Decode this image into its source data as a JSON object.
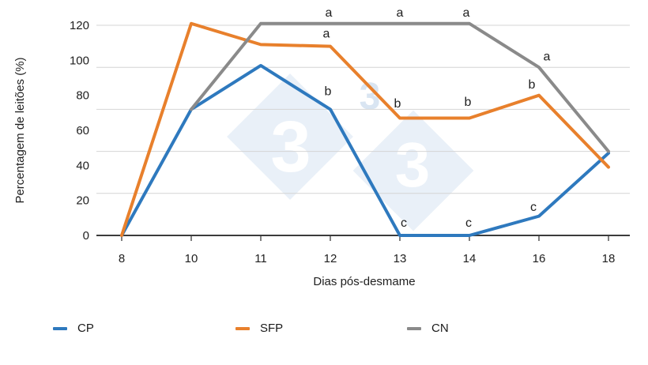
{
  "watermark": {
    "glyph": "3",
    "fill": "#E9F0F8",
    "text_color": "#D9E5F2"
  },
  "chart_data": {
    "type": "line",
    "xlabel": "Dias pós-desmame",
    "ylabel": "Percentagem de leitões (%)",
    "categories": [
      "8",
      "10",
      "11",
      "12",
      "13",
      "14",
      "16",
      "18"
    ],
    "y_ticks": [
      0,
      20,
      40,
      60,
      80,
      100,
      120
    ],
    "gridline_values": [
      24,
      48,
      72,
      96,
      120
    ],
    "ylim": [
      0,
      120
    ],
    "grid": "horizontal-only",
    "legend_position": "bottom",
    "series": [
      {
        "name": "CP",
        "color": "#2E79BE",
        "values": [
          0,
          72,
          97,
          72,
          0,
          0,
          11,
          47
        ]
      },
      {
        "name": "SFP",
        "color": "#E8802C",
        "values": [
          0,
          121,
          109,
          108,
          67,
          67,
          80,
          39
        ]
      },
      {
        "name": "CN",
        "color": "#8A8A8A",
        "values": [
          null,
          72,
          121,
          121,
          121,
          121,
          96,
          48
        ]
      }
    ],
    "annotations": [
      {
        "text": "a",
        "xi": 3,
        "dx": -2,
        "v": 125
      },
      {
        "text": "a",
        "xi": 4,
        "dx": 0,
        "v": 125
      },
      {
        "text": "a",
        "xi": 5,
        "dx": -4,
        "v": 125
      },
      {
        "text": "a",
        "xi": 3,
        "dx": -5,
        "v": 113
      },
      {
        "text": "a",
        "xi": 6,
        "dx": 10,
        "v": 100
      },
      {
        "text": "b",
        "xi": 3,
        "dx": -3,
        "v": 80
      },
      {
        "text": "b",
        "xi": 4,
        "dx": -3,
        "v": 73
      },
      {
        "text": "b",
        "xi": 5,
        "dx": -2,
        "v": 74
      },
      {
        "text": "b",
        "xi": 6,
        "dx": -9,
        "v": 84
      },
      {
        "text": "c",
        "xi": 4,
        "dx": 5,
        "v": 5
      },
      {
        "text": "c",
        "xi": 5,
        "dx": -1,
        "v": 5
      },
      {
        "text": "c",
        "xi": 6,
        "dx": -7,
        "v": 14
      }
    ],
    "style": {
      "axis_color": "#3B3B3B",
      "grid_color": "#D4D4D4",
      "text_color": "#1F1F1F"
    }
  }
}
